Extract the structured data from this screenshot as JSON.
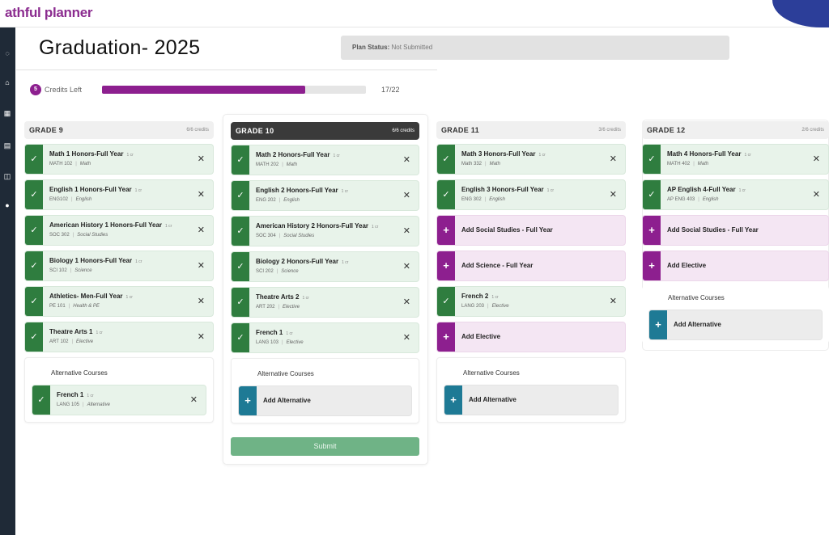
{
  "app": {
    "brand": "athful planner"
  },
  "sidebar": {
    "icons": [
      "nav-icon",
      "home-icon",
      "calendar-icon",
      "inbox-icon",
      "map-icon",
      "help-icon"
    ]
  },
  "page": {
    "title": "Graduation- 2025"
  },
  "status": {
    "label": "Plan Status:",
    "value": "Not Submitted"
  },
  "credits": {
    "badge": "5",
    "label": "Credits Left",
    "progress_fraction": 0.77,
    "progress_text": "17/22"
  },
  "grades": [
    {
      "title": "GRADE 9",
      "credits": "6/6 credits",
      "courses": [
        {
          "name": "Math 1 Honors-Full Year",
          "cr": "1 cr",
          "code": "MATH 102",
          "subject": "Math"
        },
        {
          "name": "English 1 Honors-Full Year",
          "cr": "1 cr",
          "code": "ENG102",
          "subject": "English"
        },
        {
          "name": "American History 1 Honors-Full Year",
          "cr": "1 cr",
          "code": "SOC 302",
          "subject": "Social Studies"
        },
        {
          "name": "Biology 1 Honors-Full Year",
          "cr": "1 cr",
          "code": "SCI 102",
          "subject": "Science"
        },
        {
          "name": "Athletics- Men-Full Year",
          "cr": "1 cr",
          "code": "PE 101",
          "subject": "Health & PE"
        },
        {
          "name": "Theatre Arts 1",
          "cr": "1 cr",
          "code": "ART 102",
          "subject": "Elective"
        }
      ],
      "alt_title": "Alternative Courses",
      "alt_course": {
        "name": "French 1",
        "cr": "1 cr",
        "code": "LANG 105",
        "subject": "Alternative"
      }
    },
    {
      "title": "GRADE 10",
      "credits": "6/6 credits",
      "courses": [
        {
          "name": "Math 2 Honors-Full Year",
          "cr": "1 cr",
          "code": "MATH 202",
          "subject": "Math"
        },
        {
          "name": "English 2 Honors-Full Year",
          "cr": "1 cr",
          "code": "ENG 202",
          "subject": "English"
        },
        {
          "name": "American History 2 Honors-Full Year",
          "cr": "1 cr",
          "code": "SOC 304",
          "subject": "Social Studies"
        },
        {
          "name": "Biology 2 Honors-Full Year",
          "cr": "1 cr",
          "code": "SCI 202",
          "subject": "Science"
        },
        {
          "name": "Theatre Arts 2",
          "cr": "1 cr",
          "code": "ART 202",
          "subject": "Elective"
        },
        {
          "name": "French 1",
          "cr": "1 cr",
          "code": "LANG 103",
          "subject": "Elective"
        }
      ],
      "alt_title": "Alternative Courses",
      "alt_add": "Add Alternative",
      "submit": "Submit"
    },
    {
      "title": "GRADE 11",
      "credits": "3/6 credits",
      "items": [
        {
          "kind": "course",
          "name": "Math 3 Honors-Full Year",
          "cr": "1 cr",
          "code": "Math 332",
          "subject": "Math"
        },
        {
          "kind": "course",
          "name": "English 3 Honors-Full Year",
          "cr": "1 cr",
          "code": "ENG 302",
          "subject": "English"
        },
        {
          "kind": "add",
          "name": "Add Social Studies - Full Year"
        },
        {
          "kind": "add",
          "name": "Add Science - Full Year"
        },
        {
          "kind": "course",
          "name": "French 2",
          "cr": "1 cr",
          "code": "LANG 203",
          "subject": "Elective"
        },
        {
          "kind": "add",
          "name": "Add Elective"
        }
      ],
      "alt_title": "Alternative Courses",
      "alt_add": "Add Alternative"
    },
    {
      "title": "GRADE 12",
      "credits": "2/6 credits",
      "items": [
        {
          "kind": "course",
          "name": "Math 4 Honors-Full Year",
          "cr": "1 cr",
          "code": "MATH 402",
          "subject": "Math"
        },
        {
          "kind": "course",
          "name": "AP English 4-Full Year",
          "cr": "1 cr",
          "code": "AP ENG 403",
          "subject": "English"
        },
        {
          "kind": "add",
          "name": "Add Social Studies - Full Year"
        },
        {
          "kind": "add",
          "name": "Add Elective"
        }
      ],
      "alt_title": "Alternative Courses",
      "alt_add": "Add Alternative"
    }
  ],
  "colors": {
    "purple": "#8d1f8f",
    "green": "#2f7d3f",
    "teal": "#1e7a95",
    "sidebar": "#1f2a37",
    "header_blue": "#2c3e99"
  }
}
